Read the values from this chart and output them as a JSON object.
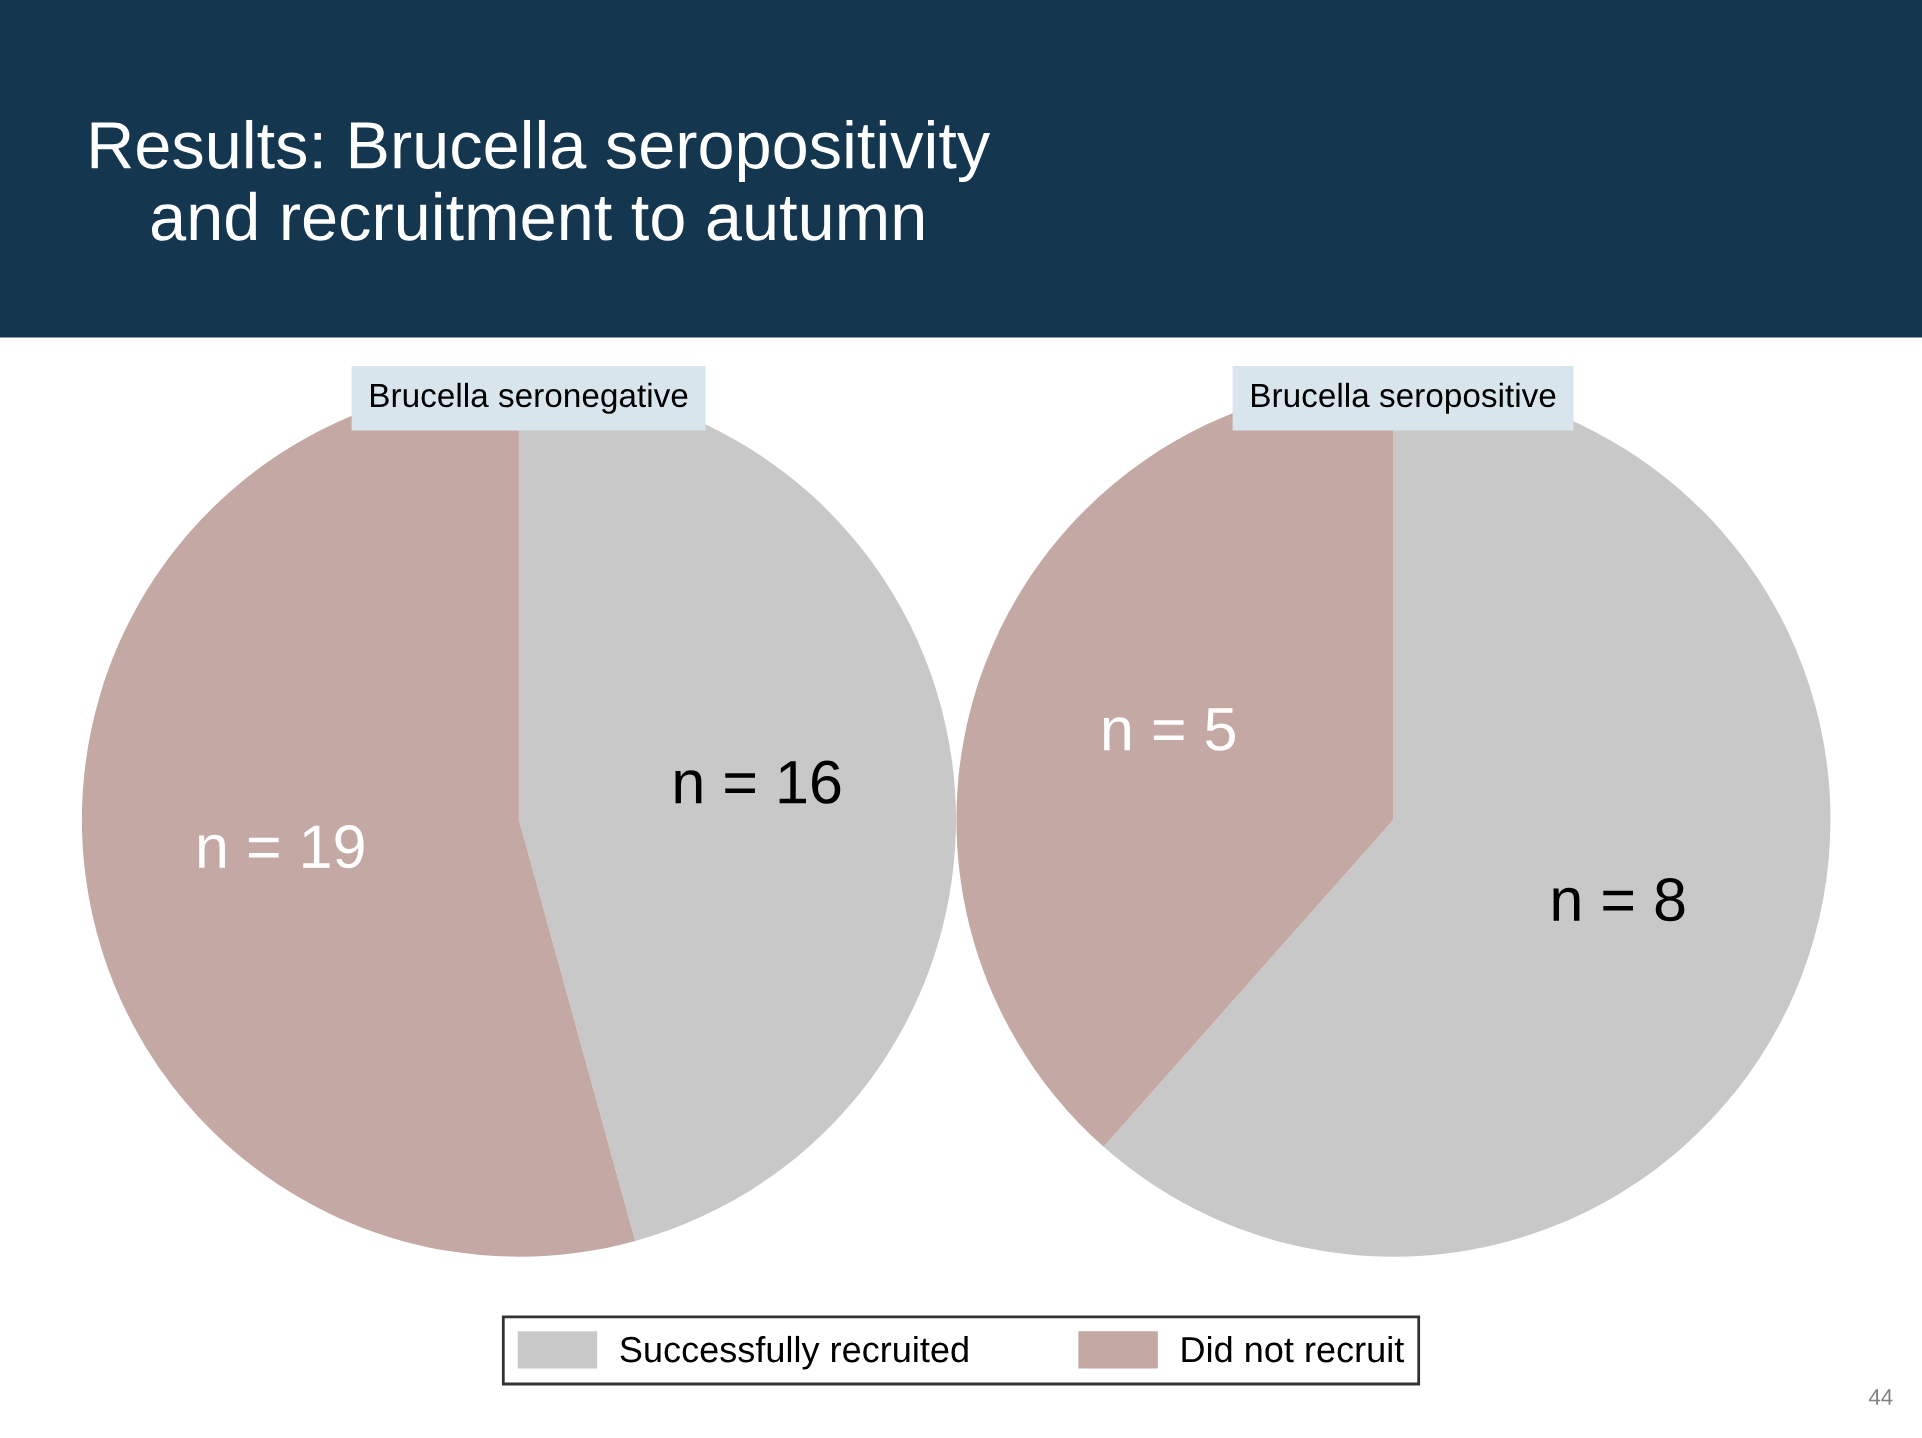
{
  "chart_data": [
    {
      "type": "pie",
      "title": "Brucella seronegative",
      "categories": [
        "Successfully recruited",
        "Did not recruit"
      ],
      "values": [
        16,
        19
      ],
      "colors": [
        "#c8c8c8",
        "#c4a8a4"
      ],
      "value_labels": [
        "n = 16",
        "n = 19"
      ],
      "legend": "bottom",
      "annotations": [
        "Results: Brucella seropositivity\nand recruitment to autumn",
        "44"
      ]
    },
    {
      "type": "pie",
      "title": "Brucella seropositive",
      "categories": [
        null,
        null
      ],
      "values": [
        8,
        5
      ],
      "colors": [
        "#c8c8c8",
        "#c4a8a4"
      ],
      "value_labels": [
        "n = 8",
        "n = 5"
      ]
    }
  ]
}
